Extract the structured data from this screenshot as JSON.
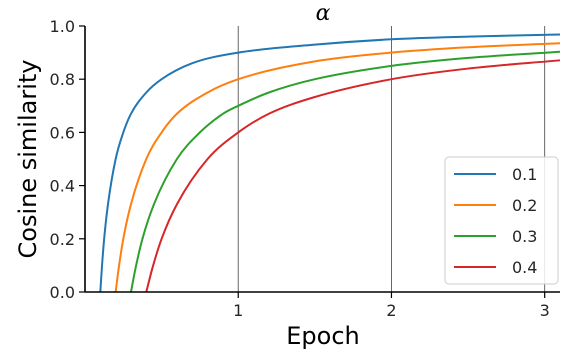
{
  "chart_data": {
    "type": "line",
    "title": "α",
    "xlabel": "Epoch",
    "ylabel": "Cosine similarity",
    "xlim": [
      0,
      3.1
    ],
    "ylim": [
      0,
      1.0
    ],
    "xticks": [
      1,
      2,
      3
    ],
    "xtick_labels": [
      "1",
      "2",
      "3"
    ],
    "yticks": [
      0.0,
      0.2,
      0.4,
      0.6,
      0.8,
      1.0
    ],
    "ytick_labels": [
      "0.0",
      "0.2",
      "0.4",
      "0.6",
      "0.8",
      "1.0"
    ],
    "grid": "vertical at x ticks",
    "legend_position": "lower-right",
    "series": [
      {
        "name": "0.1",
        "color": "#1f77b4",
        "x": [
          0.1,
          0.11,
          0.125,
          0.15,
          0.2,
          0.25,
          0.3,
          0.4,
          0.5,
          0.7,
          1.0,
          1.5,
          2.0,
          2.5,
          3.1
        ],
        "y": [
          0.0,
          0.09,
          0.2,
          0.33,
          0.5,
          0.6,
          0.67,
          0.75,
          0.8,
          0.86,
          0.9,
          0.93,
          0.95,
          0.96,
          0.968
        ]
      },
      {
        "name": "0.2",
        "color": "#ff7f0e",
        "x": [
          0.2,
          0.22,
          0.25,
          0.3,
          0.4,
          0.5,
          0.6,
          0.8,
          1.0,
          1.5,
          2.0,
          2.5,
          3.1
        ],
        "y": [
          0.0,
          0.09,
          0.2,
          0.33,
          0.5,
          0.6,
          0.67,
          0.75,
          0.8,
          0.867,
          0.9,
          0.92,
          0.935
        ]
      },
      {
        "name": "0.3",
        "color": "#2ca02c",
        "x": [
          0.3,
          0.33,
          0.375,
          0.45,
          0.6,
          0.75,
          0.9,
          1.0,
          1.2,
          1.5,
          2.0,
          2.5,
          3.1
        ],
        "y": [
          0.0,
          0.09,
          0.2,
          0.33,
          0.5,
          0.6,
          0.67,
          0.7,
          0.75,
          0.8,
          0.85,
          0.88,
          0.903
        ]
      },
      {
        "name": "0.4",
        "color": "#d62728",
        "x": [
          0.4,
          0.44,
          0.5,
          0.6,
          0.8,
          1.0,
          1.2,
          1.5,
          2.0,
          2.5,
          3.1
        ],
        "y": [
          0.0,
          0.09,
          0.2,
          0.33,
          0.5,
          0.6,
          0.67,
          0.733,
          0.8,
          0.84,
          0.871
        ]
      }
    ]
  }
}
